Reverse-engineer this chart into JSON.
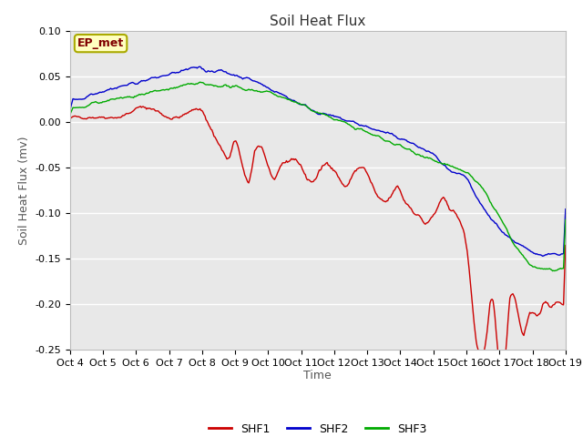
{
  "title": "Soil Heat Flux",
  "ylabel": "Soil Heat Flux (mv)",
  "xlabel": "Time",
  "ylim": [
    -0.25,
    0.1
  ],
  "yticks": [
    0.1,
    0.05,
    0.0,
    -0.05,
    -0.1,
    -0.15,
    -0.2,
    -0.25
  ],
  "xtick_labels": [
    "Oct 4",
    "Oct 5",
    "Oct 6",
    "Oct 7",
    "Oct 8",
    "Oct 9",
    "Oct 10",
    "Oct 11",
    "Oct 12",
    "Oct 13",
    "Oct 14",
    "Oct 15",
    "Oct 16",
    "Oct 17",
    "Oct 18",
    "Oct 19"
  ],
  "colors": {
    "SHF1": "#cc0000",
    "SHF2": "#0000cc",
    "SHF3": "#00aa00"
  },
  "annotation_text": "EP_met",
  "annotation_text_color": "#800000",
  "annotation_bg": "#ffffc0",
  "annotation_edge": "#aaaa00",
  "plot_bg": "#e8e8e8",
  "grid_color": "#ffffff",
  "fig_bg": "#ffffff",
  "title_fontsize": 11,
  "label_fontsize": 9,
  "tick_fontsize": 8,
  "legend_fontsize": 9
}
